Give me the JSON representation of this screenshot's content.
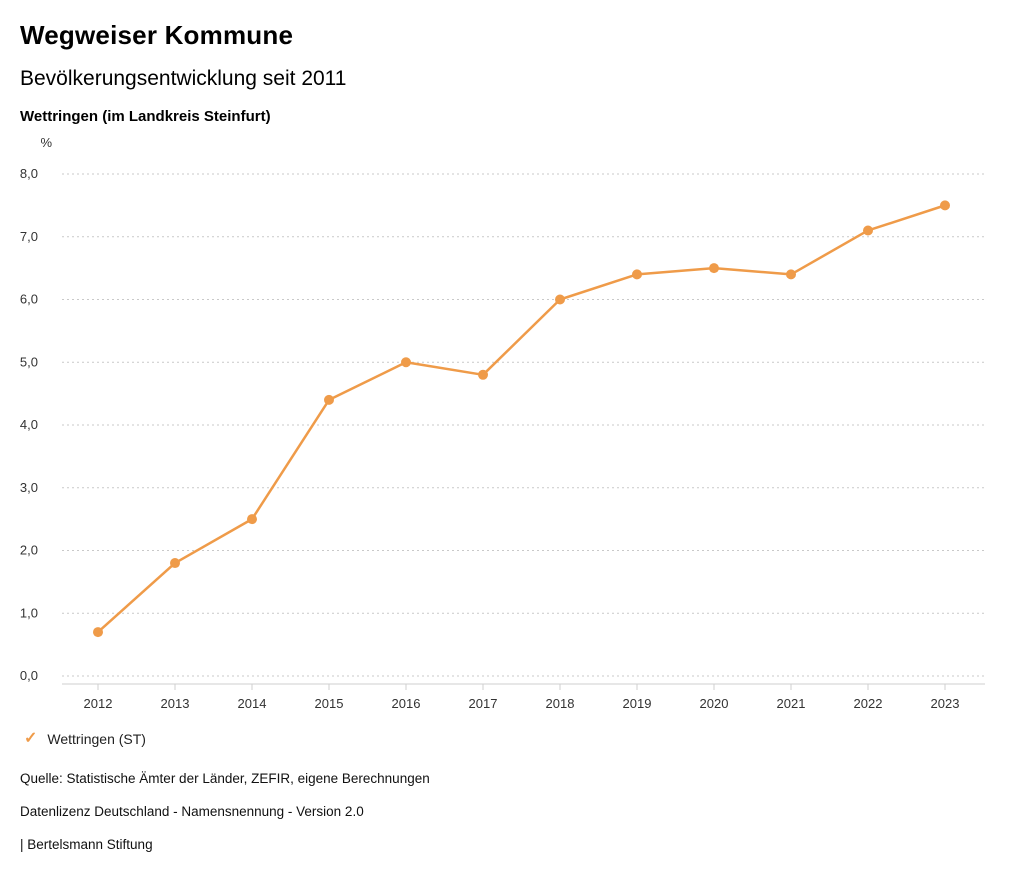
{
  "header": {
    "title": "Wegweiser Kommune",
    "subtitle": "Bevölkerungsentwicklung seit 2011",
    "location": "Wettringen (im Landkreis Steinfurt)"
  },
  "chart_data": {
    "type": "line",
    "title": "Bevölkerungsentwicklung seit 2011 – Wettringen (im Landkreis Steinfurt)",
    "unit_label": "%",
    "x": [
      "2012",
      "2013",
      "2014",
      "2015",
      "2016",
      "2017",
      "2018",
      "2019",
      "2020",
      "2021",
      "2022",
      "2023"
    ],
    "series": [
      {
        "name": "Wettringen (ST)",
        "color": "#EF9B49",
        "values": [
          0.7,
          1.8,
          2.5,
          4.4,
          5.0,
          4.8,
          6.0,
          6.4,
          6.5,
          6.4,
          7.1,
          7.5
        ]
      }
    ],
    "ylim": [
      0,
      8
    ],
    "ytick_step": 1,
    "ytick_labels": [
      "0,0",
      "1,0",
      "2,0",
      "3,0",
      "4,0",
      "5,0",
      "6,0",
      "7,0",
      "8,0"
    ],
    "grid": "dotted-horizontal",
    "legend_position": "bottom-left"
  },
  "legend": {
    "check_icon": "✓",
    "label": "Wettringen (ST)",
    "color": "#EF9B49"
  },
  "footer": {
    "source": "Quelle: Statistische Ämter der Länder, ZEFIR, eigene Berechnungen",
    "license": "Datenlizenz Deutschland - Namensnennung - Version 2.0",
    "attribution": "| Bertelsmann Stiftung"
  }
}
